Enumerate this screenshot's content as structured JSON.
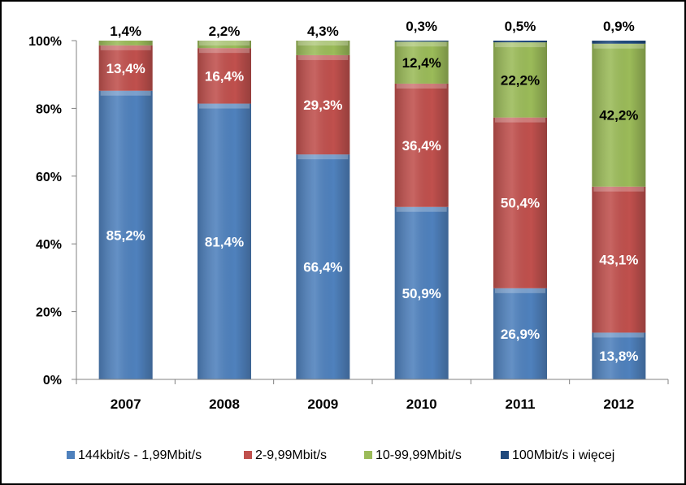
{
  "chart_data": {
    "type": "bar",
    "stacked": true,
    "categories": [
      "2007",
      "2008",
      "2009",
      "2010",
      "2011",
      "2012"
    ],
    "series": [
      {
        "name": "144kbit/s - 1,99Mbit/s",
        "values": [
          85.2,
          81.4,
          66.4,
          50.9,
          26.9,
          13.8
        ],
        "labels": [
          "85,2%",
          "81,4%",
          "66,4%",
          "50,9%",
          "26,9%",
          "13,8%"
        ],
        "color": "#4f81bd",
        "label_color": "#ffffff"
      },
      {
        "name": "2-9,99Mbit/s",
        "values": [
          13.4,
          16.4,
          29.3,
          36.4,
          50.4,
          43.1
        ],
        "labels": [
          "13,4%",
          "16,4%",
          "29,3%",
          "36,4%",
          "50,4%",
          "43,1%"
        ],
        "color": "#c0504d",
        "label_color": "#ffffff"
      },
      {
        "name": "10-99,99Mbit/s",
        "values": [
          1.4,
          2.2,
          4.3,
          12.4,
          22.2,
          42.2
        ],
        "labels": [
          "1,4%",
          "2,2%",
          "4,3%",
          "12,4%",
          "22,2%",
          "42,2%"
        ],
        "color": "#9bbb59",
        "label_color": "#000000"
      },
      {
        "name": "100Mbit/s i więcej",
        "values": [
          0,
          0,
          0,
          0.3,
          0.5,
          0.9
        ],
        "labels": [
          "",
          "",
          "",
          "0,3%",
          "0,5%",
          "0,9%"
        ],
        "color": "#1f497d",
        "label_color": "#000000"
      }
    ],
    "ylim": [
      0,
      100
    ],
    "yticks": [
      0,
      20,
      40,
      60,
      80,
      100
    ],
    "ytick_labels": [
      "0%",
      "20%",
      "40%",
      "60%",
      "80%",
      "100%"
    ],
    "grid": false,
    "legend_position": "bottom"
  }
}
